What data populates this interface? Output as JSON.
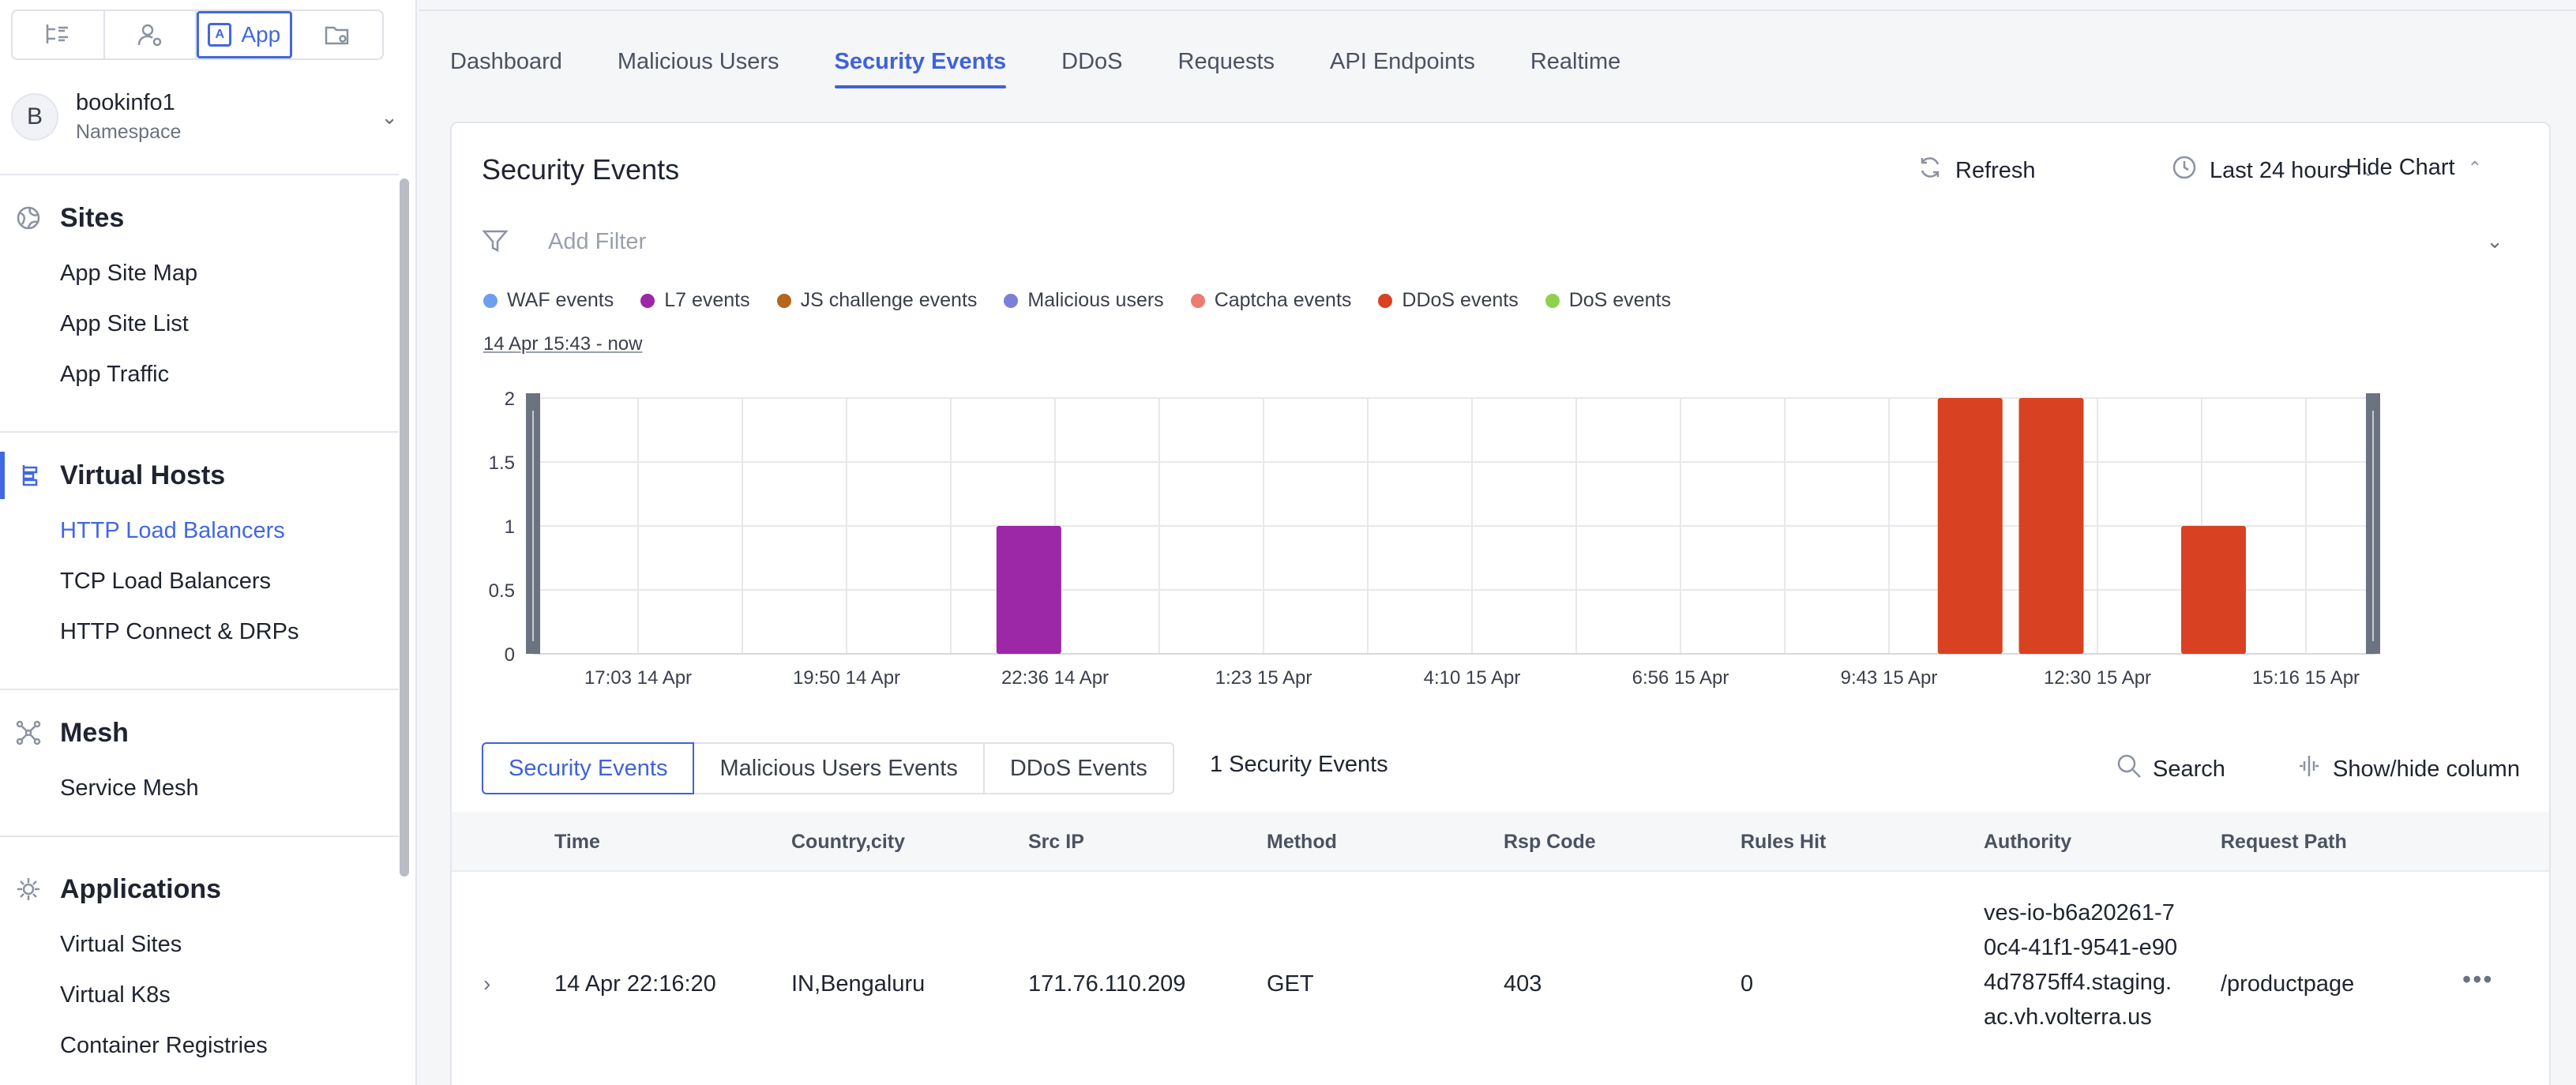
{
  "sidebar": {
    "top_icons": [
      {
        "icon": "hierarchy-icon"
      },
      {
        "icon": "user-settings-icon"
      },
      {
        "icon": "app-icon",
        "label": "App"
      },
      {
        "icon": "folder-settings-icon"
      }
    ],
    "namespace": {
      "avatar": "B",
      "name": "bookinfo1",
      "sublabel": "Namespace"
    },
    "groups": [
      {
        "title": "Sites",
        "icon": "globe-icon",
        "items": [
          "App Site Map",
          "App Site List",
          "App Traffic"
        ]
      },
      {
        "title": "Virtual Hosts",
        "icon": "virtual-hosts-icon",
        "items": [
          "HTTP Load Balancers",
          "TCP Load Balancers",
          "HTTP Connect & DRPs"
        ]
      },
      {
        "title": "Mesh",
        "icon": "mesh-icon",
        "items": [
          "Service Mesh"
        ]
      },
      {
        "title": "Applications",
        "icon": "applications-icon",
        "items": [
          "Virtual Sites",
          "Virtual K8s",
          "Container Registries"
        ]
      }
    ]
  },
  "tabs": [
    "Dashboard",
    "Malicious Users",
    "Security Events",
    "DDoS",
    "Requests",
    "API Endpoints",
    "Realtime"
  ],
  "active_tab": "Security Events",
  "card": {
    "title": "Security Events",
    "refresh_label": "Refresh",
    "time_range_label": "Last 24 hours",
    "hide_chart_label": "Hide Chart",
    "filter_placeholder": "Add Filter",
    "legend": [
      {
        "label": "WAF events",
        "color": "#6e9ef0"
      },
      {
        "label": "L7 events",
        "color": "#9c27a7"
      },
      {
        "label": "JS challenge events",
        "color": "#b5651d"
      },
      {
        "label": "Malicious users",
        "color": "#7b7fd9"
      },
      {
        "label": "Captcha events",
        "color": "#ec7b72"
      },
      {
        "label": "DDoS events",
        "color": "#d84222"
      },
      {
        "label": "DoS events",
        "color": "#8fd14f"
      }
    ],
    "range_text": "14 Apr 15:43 - now"
  },
  "chart_data": {
    "type": "bar",
    "x_ticks": [
      "17:03 14 Apr",
      "19:50 14 Apr",
      "22:36 14 Apr",
      "1:23 15 Apr",
      "4:10 15 Apr",
      "6:56 15 Apr",
      "9:43 15 Apr",
      "12:30 15 Apr",
      "15:16 15 Apr"
    ],
    "y_ticks": [
      "0",
      "0.5",
      "1",
      "1.5",
      "2"
    ],
    "ylim": [
      0,
      2
    ],
    "grid": true,
    "bars": [
      {
        "x": "14 Apr 22:16",
        "series": "L7 events",
        "value": 1
      },
      {
        "x": "15 Apr 10:50",
        "series": "DDoS events",
        "value": 2
      },
      {
        "x": "15 Apr 11:55",
        "series": "DDoS events",
        "value": 2
      },
      {
        "x": "15 Apr 14:05",
        "series": "DDoS events",
        "value": 1
      }
    ]
  },
  "table": {
    "subtabs": [
      "Security Events",
      "Malicious Users Events",
      "DDoS Events"
    ],
    "count_label": "1 Security Events",
    "search_label": "Search",
    "columns_label": "Show/hide column",
    "headers": [
      "Time",
      "Country,city",
      "Src IP",
      "Method",
      "Rsp Code",
      "Rules Hit",
      "Authority",
      "Request Path"
    ],
    "rows": [
      {
        "time": "14 Apr 22:16:20",
        "country_city": "IN,Bengaluru",
        "src_ip": "171.76.110.209",
        "method": "GET",
        "rsp_code": "403",
        "rules_hit": "0",
        "authority": "ves-io-b6a20261-70c4-41f1-9541-e904d7875ff4.staging.ac.vh.volterra.us",
        "request_path": "/productpage"
      }
    ]
  }
}
